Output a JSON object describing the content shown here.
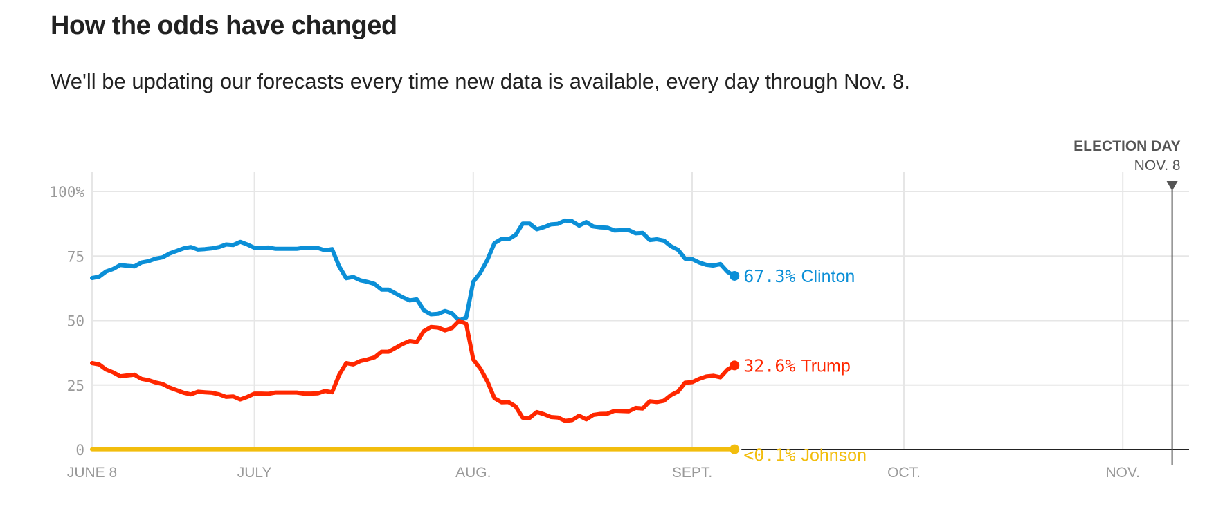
{
  "header": {
    "title": "How the odds have changed",
    "subtitle": "We'll be updating our forecasts every time new data is available, every day through Nov. 8."
  },
  "chart_data": {
    "type": "line",
    "title": "How the odds have changed",
    "xlabel": "",
    "ylabel": "",
    "x_unit": "days since June 8",
    "xlim": [
      0,
      159
    ],
    "ylim": [
      0,
      108
    ],
    "grid": true,
    "y_ticks": [
      {
        "value": 0,
        "label": "0"
      },
      {
        "value": 25,
        "label": "25"
      },
      {
        "value": 50,
        "label": "50"
      },
      {
        "value": 75,
        "label": "75"
      },
      {
        "value": 100,
        "label": "100%"
      }
    ],
    "x_ticks": [
      {
        "value": 0,
        "label": "JUNE 8"
      },
      {
        "value": 23,
        "label": "JULY"
      },
      {
        "value": 54,
        "label": "AUG."
      },
      {
        "value": 85,
        "label": "SEPT."
      },
      {
        "value": 115,
        "label": "OCT."
      },
      {
        "value": 146,
        "label": "NOV."
      }
    ],
    "marker": {
      "x": 153,
      "title": "ELECTION DAY",
      "date": "NOV. 8"
    },
    "series": [
      {
        "name": "Clinton",
        "color": "#0b8fd7",
        "end_label": "67.3%",
        "x": [
          0,
          1,
          2,
          3,
          4,
          5,
          6,
          7,
          8,
          9,
          10,
          11,
          12,
          13,
          14,
          15,
          16,
          17,
          18,
          19,
          20,
          21,
          22,
          23,
          24,
          25,
          26,
          27,
          28,
          29,
          30,
          31,
          32,
          33,
          34,
          35,
          36,
          37,
          38,
          39,
          40,
          41,
          42,
          43,
          44,
          45,
          46,
          47,
          48,
          49,
          50,
          51,
          52,
          53,
          54,
          55,
          56,
          57,
          58,
          59,
          60,
          61,
          62,
          63,
          64,
          65,
          66,
          67,
          68,
          69,
          70,
          71,
          72,
          73,
          74,
          75,
          76,
          77,
          78,
          79,
          80,
          81,
          82,
          83,
          84,
          85,
          86,
          87,
          88,
          89,
          90,
          91
        ],
        "values": [
          66.5,
          67,
          69,
          70,
          71.5,
          71.2,
          71,
          72.5,
          73,
          74,
          74.5,
          76,
          77,
          78,
          78.5,
          77.5,
          77.7,
          78,
          78.5,
          79.5,
          79.3,
          80.5,
          79.5,
          78.2,
          78.2,
          78.3,
          77.8,
          77.8,
          77.8,
          77.8,
          78.2,
          78.2,
          78.1,
          77.2,
          77.7,
          71,
          66.4,
          66.9,
          65.6,
          65,
          64.2,
          62,
          62,
          60.5,
          59,
          57.8,
          58.2,
          54,
          52.4,
          52.6,
          53.7,
          52.8,
          50,
          51.2,
          65,
          68.5,
          73.5,
          80,
          81.6,
          81.5,
          83.2,
          87.6,
          87.6,
          85.4,
          86.2,
          87.3,
          87.5,
          88.8,
          88.5,
          86.8,
          88.2,
          86.5,
          86.1,
          86,
          84.9,
          85,
          85.1,
          83.8,
          84,
          81.2,
          81.5,
          81,
          78.8,
          77.4,
          74,
          73.8,
          72.5,
          71.6,
          71.3,
          71.9,
          68.9,
          67.3
        ]
      },
      {
        "name": "Trump",
        "color": "#ff2700",
        "end_label": "32.6%",
        "x": [
          0,
          1,
          2,
          3,
          4,
          5,
          6,
          7,
          8,
          9,
          10,
          11,
          12,
          13,
          14,
          15,
          16,
          17,
          18,
          19,
          20,
          21,
          22,
          23,
          24,
          25,
          26,
          27,
          28,
          29,
          30,
          31,
          32,
          33,
          34,
          35,
          36,
          37,
          38,
          39,
          40,
          41,
          42,
          43,
          44,
          45,
          46,
          47,
          48,
          49,
          50,
          51,
          52,
          53,
          54,
          55,
          56,
          57,
          58,
          59,
          60,
          61,
          62,
          63,
          64,
          65,
          66,
          67,
          68,
          69,
          70,
          71,
          72,
          73,
          74,
          75,
          76,
          77,
          78,
          79,
          80,
          81,
          82,
          83,
          84,
          85,
          86,
          87,
          88,
          89,
          90,
          91
        ],
        "values": [
          33.5,
          33,
          31,
          29.9,
          28.4,
          28.7,
          29,
          27.4,
          26.9,
          26,
          25.4,
          24,
          23,
          22,
          21.4,
          22.4,
          22.2,
          22,
          21.4,
          20.4,
          20.6,
          19.4,
          20.4,
          21.7,
          21.7,
          21.6,
          22.1,
          22.1,
          22.1,
          22.1,
          21.7,
          21.7,
          21.8,
          22.7,
          22.2,
          28.9,
          33.5,
          33,
          34.3,
          34.9,
          35.7,
          37.9,
          37.9,
          39.4,
          40.9,
          42.1,
          41.7,
          45.9,
          47.5,
          47.3,
          46.2,
          47.1,
          49.9,
          48.7,
          34.9,
          31.4,
          26.4,
          19.9,
          18.3,
          18.4,
          16.7,
          12.3,
          12.3,
          14.5,
          13.7,
          12.6,
          12.4,
          11.1,
          11.4,
          13.1,
          11.7,
          13.4,
          13.8,
          13.9,
          15,
          14.9,
          14.8,
          16.1,
          15.9,
          18.7,
          18.4,
          18.9,
          21.1,
          22.5,
          25.9,
          26.1,
          27.4,
          28.3,
          28.6,
          28,
          31,
          32.6
        ]
      },
      {
        "name": "Johnson",
        "color": "#f2bd0d",
        "end_label": "<0.1%",
        "x": [
          0,
          91
        ],
        "values": [
          0.1,
          0.1
        ]
      }
    ]
  }
}
